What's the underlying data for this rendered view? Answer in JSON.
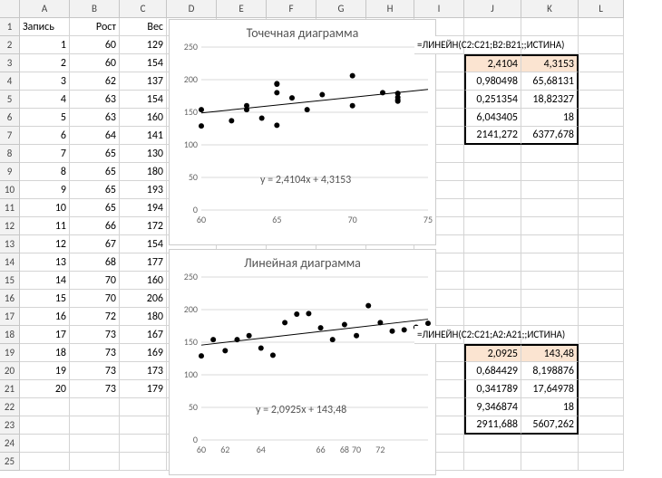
{
  "columns": [
    "A",
    "B",
    "C",
    "D",
    "E",
    "F",
    "G",
    "H",
    "I",
    "J",
    "K",
    "L"
  ],
  "rowCount": 25,
  "tableHeaders": {
    "A": "Запись",
    "B": "Рост",
    "C": "Вес"
  },
  "tableData": [
    [
      1,
      60,
      129
    ],
    [
      2,
      60,
      154
    ],
    [
      3,
      62,
      137
    ],
    [
      4,
      63,
      154
    ],
    [
      5,
      63,
      160
    ],
    [
      6,
      64,
      141
    ],
    [
      7,
      65,
      130
    ],
    [
      8,
      65,
      180
    ],
    [
      9,
      65,
      193
    ],
    [
      10,
      65,
      194
    ],
    [
      11,
      66,
      172
    ],
    [
      12,
      67,
      154
    ],
    [
      13,
      68,
      177
    ],
    [
      14,
      70,
      160
    ],
    [
      15,
      70,
      206
    ],
    [
      16,
      72,
      180
    ],
    [
      17,
      73,
      167
    ],
    [
      18,
      73,
      169
    ],
    [
      19,
      73,
      173
    ],
    [
      20,
      73,
      179
    ]
  ],
  "formula1": "=ЛИНЕЙН(C2:C21;B2:B21;;ИСТИНА)",
  "linest1": [
    [
      "2,4104",
      "4,3153"
    ],
    [
      "0,980498",
      "65,68131"
    ],
    [
      "0,251354",
      "18,82327"
    ],
    [
      "6,043405",
      "18"
    ],
    [
      "2141,272",
      "6377,678"
    ]
  ],
  "formula2": "=ЛИНЕЙН(C2:C21;A2:A21;;ИСТИНА)",
  "linest2": [
    [
      "2,0925",
      "143,48"
    ],
    [
      "0,684429",
      "8,198876"
    ],
    [
      "0,341789",
      "17,64978"
    ],
    [
      "9,346874",
      "18"
    ],
    [
      "2911,688",
      "5607,262"
    ]
  ],
  "chart1": {
    "title": "Точечная диаграмма",
    "equation": "y = 2,4104x + 4,3153",
    "type": "scatter",
    "points": [
      [
        60,
        129
      ],
      [
        60,
        154
      ],
      [
        62,
        137
      ],
      [
        63,
        154
      ],
      [
        63,
        160
      ],
      [
        64,
        141
      ],
      [
        65,
        130
      ],
      [
        65,
        180
      ],
      [
        65,
        193
      ],
      [
        65,
        194
      ],
      [
        66,
        172
      ],
      [
        67,
        154
      ],
      [
        68,
        177
      ],
      [
        70,
        160
      ],
      [
        70,
        206
      ],
      [
        72,
        180
      ],
      [
        73,
        167
      ],
      [
        73,
        169
      ],
      [
        73,
        173
      ],
      [
        73,
        179
      ]
    ],
    "xlim": [
      60,
      75
    ],
    "ylim": [
      0,
      250
    ],
    "xticks": [
      60,
      65,
      70,
      75
    ],
    "yticks": [
      0,
      50,
      100,
      150,
      200,
      250
    ],
    "marker_color": "#000000",
    "marker_size": 3,
    "line_color": "#000000",
    "line_width": 1,
    "grid_color": "#d9d9d9",
    "trend": {
      "slope": 2.4104,
      "intercept": 4.3153
    },
    "title_fontsize": 14,
    "tick_fontsize": 10
  },
  "chart2": {
    "title": "Линейная диаграмма",
    "equation": "y = 2,0925x + 143,48",
    "type": "line",
    "categories": [
      60,
      60,
      62,
      63,
      63,
      64,
      65,
      65,
      65,
      65,
      66,
      67,
      68,
      70,
      70,
      72,
      73,
      73,
      73,
      73
    ],
    "values": [
      129,
      154,
      137,
      154,
      160,
      141,
      130,
      180,
      193,
      194,
      172,
      154,
      177,
      160,
      206,
      180,
      167,
      169,
      173,
      179
    ],
    "xticks": [
      60,
      62,
      64,
      66,
      68,
      70,
      72
    ],
    "ylim": [
      0,
      250
    ],
    "yticks": [
      0,
      50,
      100,
      150,
      200,
      250
    ],
    "marker_color": "#000000",
    "marker_size": 3,
    "line_color": "#000000",
    "line_width": 1,
    "grid_color": "#d9d9d9",
    "trend": {
      "slope": 2.0925,
      "intercept": 143.48
    },
    "title_fontsize": 14,
    "tick_fontsize": 10
  },
  "highlight_color": "#fbe4d1"
}
